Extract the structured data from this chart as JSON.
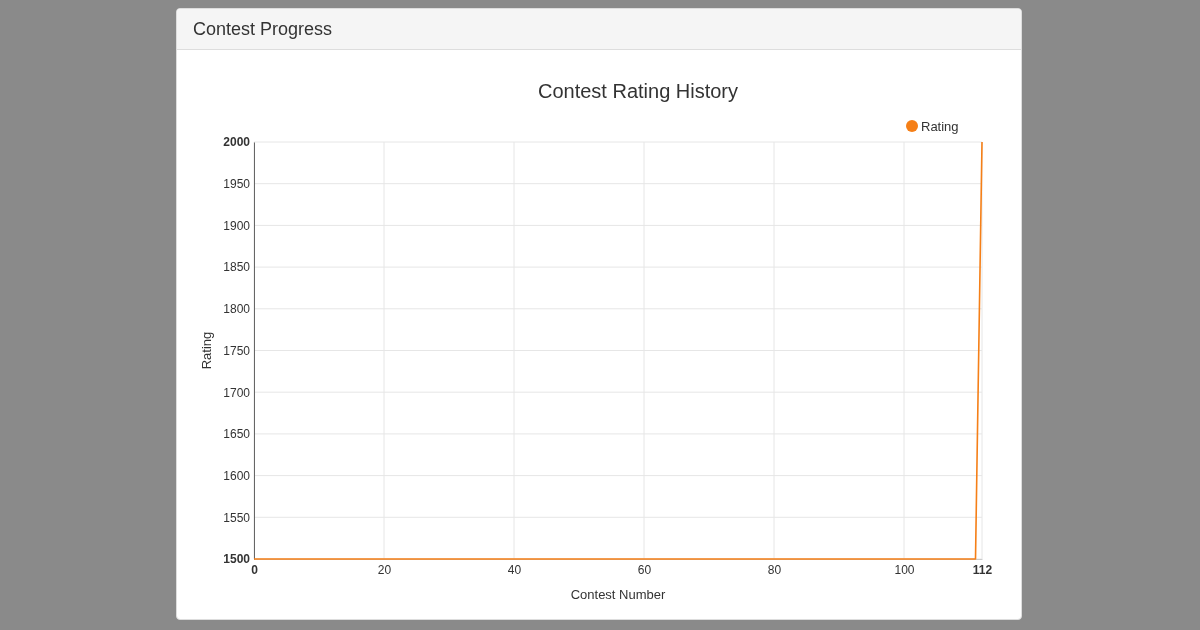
{
  "chart_data": {
    "type": "line",
    "title": "Contest Rating History",
    "annotations": [
      "Contest Progress"
    ],
    "xlabel": "Contest Number",
    "ylabel": "Rating",
    "x": [
      0,
      111,
      112
    ],
    "series": [
      {
        "name": "Rating",
        "color": "#f57f17",
        "values": [
          1500,
          1500,
          2000
        ]
      }
    ],
    "xlim": [
      0,
      112
    ],
    "xticks": [
      0,
      20,
      40,
      60,
      80,
      100,
      112
    ],
    "ylim": [
      1500,
      2000
    ],
    "yticks": [
      1500,
      1550,
      1600,
      1650,
      1700,
      1750,
      1800,
      1850,
      1900,
      1950,
      2000
    ],
    "grid": true,
    "legend": "top right",
    "marker": "none",
    "line_style": "solid"
  }
}
